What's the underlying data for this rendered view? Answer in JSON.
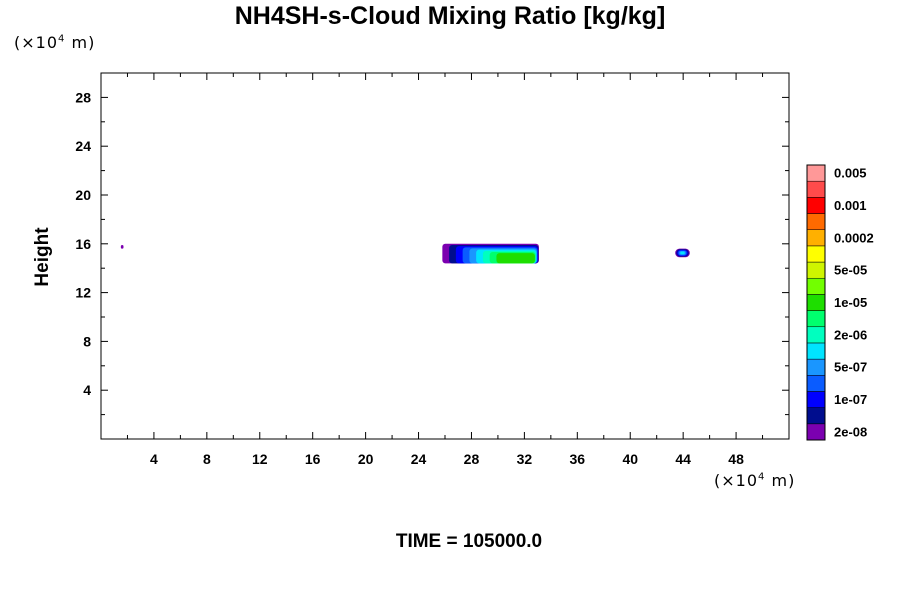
{
  "chart_data": {
    "type": "heatmap",
    "title": "NH4SH-s-Cloud Mixing Ratio [kg/kg]",
    "ylabel": "Height",
    "x_unit": {
      "prefix": "(×10",
      "exp": "4",
      "suffix": " m)"
    },
    "y_unit": {
      "prefix": "(×10",
      "exp": "4",
      "suffix": " m)"
    },
    "xlim": [
      0,
      52
    ],
    "ylim": [
      0,
      30
    ],
    "x_ticks": [
      4,
      8,
      12,
      16,
      20,
      24,
      28,
      32,
      36,
      40,
      44,
      48
    ],
    "y_ticks": [
      4,
      8,
      12,
      16,
      20,
      24,
      28
    ],
    "time_label": "TIME = 105000.0",
    "colorbar": {
      "colors": [
        "#7b00b0",
        "#000d8e",
        "#0000ff",
        "#0a5cff",
        "#1a96ff",
        "#00e4ff",
        "#00ffbf",
        "#00ff6e",
        "#1ede00",
        "#72ff00",
        "#cff500",
        "#ffff00",
        "#ffb000",
        "#ff6a00",
        "#ff0000",
        "#ff4b4b",
        "#ff9898"
      ],
      "labels": [
        "2e-08",
        "1e-07",
        "5e-07",
        "2e-06",
        "1e-05",
        "5e-05",
        "0.0002",
        "0.001",
        "0.005"
      ]
    },
    "features": [
      {
        "name": "small cell",
        "x_range": [
          1.5,
          1.7
        ],
        "y_range": [
          15.6,
          15.9
        ],
        "max_level": 0
      },
      {
        "name": "main cloud band",
        "x_range": [
          25.8,
          33.1
        ],
        "y_range": [
          14.4,
          16.0
        ],
        "max_level": 8
      },
      {
        "name": "eastern cell",
        "x_range": [
          43.4,
          44.5
        ],
        "y_range": [
          14.9,
          15.6
        ],
        "max_level": 5
      }
    ]
  }
}
